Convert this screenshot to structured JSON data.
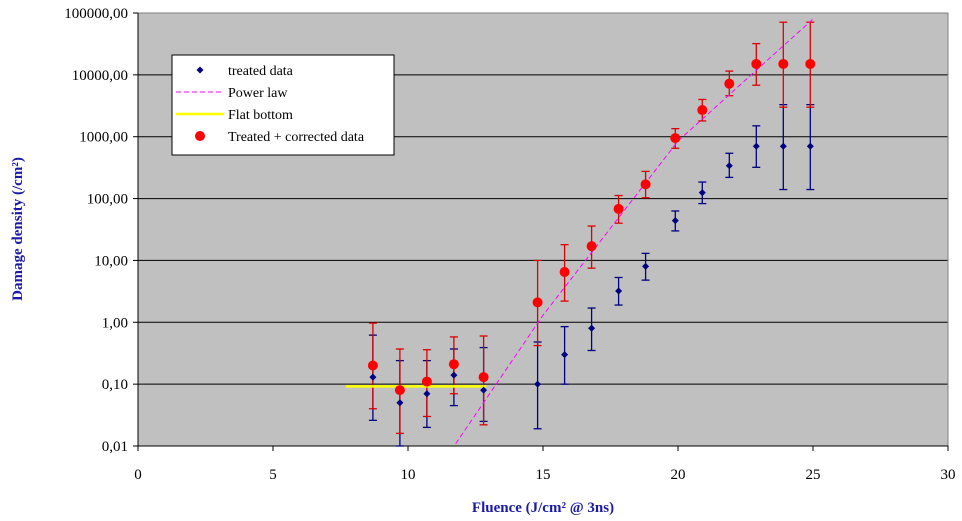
{
  "chart_data": {
    "type": "scatter",
    "title": "",
    "xlabel": "Fluence (J/cm² @ 3ns)",
    "ylabel": "Damage density (/cm²)",
    "xlim": [
      0,
      30
    ],
    "ylim": [
      0.01,
      100000
    ],
    "yscale": "log",
    "x_ticks": [
      0,
      5,
      10,
      15,
      20,
      25,
      30
    ],
    "x_tick_labels": [
      "0",
      "5",
      "10",
      "15",
      "20",
      "25",
      "30"
    ],
    "y_ticks": [
      0.01,
      0.1,
      1,
      10,
      100,
      1000,
      10000,
      100000
    ],
    "y_tick_labels": [
      "0,01",
      "0,10",
      "1,00",
      "10,00",
      "100,00",
      "1000,00",
      "10000,00",
      "100000,00"
    ],
    "grid": "horizontal major gridlines",
    "plot_background": "#c0c0c0",
    "legend_position": "top-left",
    "series": [
      {
        "name": "treated data",
        "kind": "markers-diamond",
        "color": "#000080",
        "errorbar_color": "#000080",
        "points": [
          {
            "x": 8.7,
            "y": 0.13,
            "lo": 0.026,
            "hi": 0.62
          },
          {
            "x": 9.7,
            "y": 0.05,
            "lo": 0.01,
            "hi": 0.24
          },
          {
            "x": 10.7,
            "y": 0.07,
            "lo": 0.02,
            "hi": 0.24
          },
          {
            "x": 11.7,
            "y": 0.14,
            "lo": 0.045,
            "hi": 0.37
          },
          {
            "x": 12.8,
            "y": 0.08,
            "lo": 0.025,
            "hi": 0.39
          },
          {
            "x": 14.8,
            "y": 0.1,
            "lo": 0.019,
            "hi": 0.48
          },
          {
            "x": 15.8,
            "y": 0.3,
            "lo": 0.1,
            "hi": 0.85
          },
          {
            "x": 16.8,
            "y": 0.8,
            "lo": 0.35,
            "hi": 1.7
          },
          {
            "x": 17.8,
            "y": 3.2,
            "lo": 1.9,
            "hi": 5.3
          },
          {
            "x": 18.8,
            "y": 8,
            "lo": 4.8,
            "hi": 13
          },
          {
            "x": 19.9,
            "y": 44,
            "lo": 30,
            "hi": 63
          },
          {
            "x": 20.9,
            "y": 125,
            "lo": 83,
            "hi": 185
          },
          {
            "x": 21.9,
            "y": 340,
            "lo": 220,
            "hi": 540
          },
          {
            "x": 22.9,
            "y": 700,
            "lo": 320,
            "hi": 1500
          },
          {
            "x": 23.9,
            "y": 700,
            "lo": 140,
            "hi": 3300
          },
          {
            "x": 24.9,
            "y": 700,
            "lo": 140,
            "hi": 3300
          }
        ]
      },
      {
        "name": "Power law",
        "kind": "dashed-line",
        "color": "#ff00ff",
        "points": [
          {
            "x": 11.6,
            "y": 0.0085
          },
          {
            "x": 15.0,
            "y": 1.3
          },
          {
            "x": 20.0,
            "y": 850
          },
          {
            "x": 25.0,
            "y": 80000
          }
        ]
      },
      {
        "name": "Flat bottom",
        "kind": "solid-line",
        "color": "#ffff00",
        "points": [
          {
            "x": 7.7,
            "y": 0.092
          },
          {
            "x": 12.9,
            "y": 0.092
          }
        ]
      },
      {
        "name": "Treated + corrected data",
        "kind": "markers-circle",
        "color": "#ff0000",
        "errorbar_color": "#dd0000",
        "points": [
          {
            "x": 8.7,
            "y": 0.2,
            "lo": 0.04,
            "hi": 0.97
          },
          {
            "x": 9.7,
            "y": 0.08,
            "lo": 0.016,
            "hi": 0.37
          },
          {
            "x": 10.7,
            "y": 0.11,
            "lo": 0.03,
            "hi": 0.36
          },
          {
            "x": 11.7,
            "y": 0.21,
            "lo": 0.07,
            "hi": 0.58
          },
          {
            "x": 12.8,
            "y": 0.13,
            "lo": 0.022,
            "hi": 0.6
          },
          {
            "x": 14.8,
            "y": 2.1,
            "lo": 0.42,
            "hi": 10
          },
          {
            "x": 15.8,
            "y": 6.5,
            "lo": 2.2,
            "hi": 18
          },
          {
            "x": 16.8,
            "y": 17,
            "lo": 7.5,
            "hi": 36
          },
          {
            "x": 17.8,
            "y": 68,
            "lo": 40,
            "hi": 112
          },
          {
            "x": 18.8,
            "y": 170,
            "lo": 103,
            "hi": 275
          },
          {
            "x": 19.9,
            "y": 950,
            "lo": 650,
            "hi": 1350
          },
          {
            "x": 20.9,
            "y": 2700,
            "lo": 1800,
            "hi": 4000
          },
          {
            "x": 21.9,
            "y": 7200,
            "lo": 4600,
            "hi": 11500
          },
          {
            "x": 22.9,
            "y": 15000,
            "lo": 6800,
            "hi": 32000
          },
          {
            "x": 23.9,
            "y": 15000,
            "lo": 3000,
            "hi": 71000
          },
          {
            "x": 24.9,
            "y": 15000,
            "lo": 3000,
            "hi": 71000
          }
        ]
      }
    ]
  }
}
